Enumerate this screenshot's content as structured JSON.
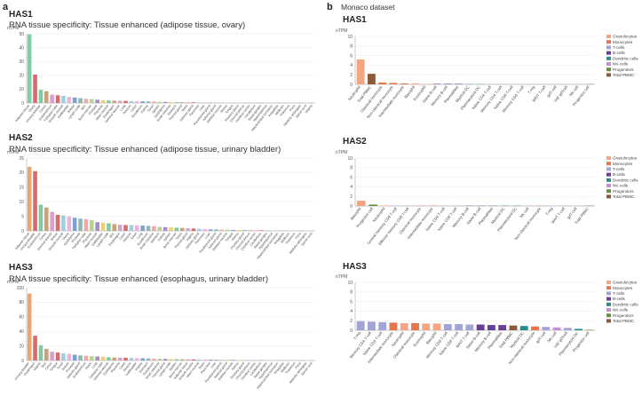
{
  "panels": {
    "a": "a",
    "b": "b"
  },
  "monaco_title": "Monaco dataset",
  "unit": "nTPM",
  "legend": [
    {
      "label": "Granulocytes",
      "color": "#f4a582"
    },
    {
      "label": "Monocytes",
      "color": "#e6764e"
    },
    {
      "label": "T-cells",
      "color": "#a3a4d6"
    },
    {
      "label": "B-cells",
      "color": "#6a3d9a"
    },
    {
      "label": "Dendritic cells",
      "color": "#2c8c8c"
    },
    {
      "label": "NK-cells",
      "color": "#c98fd6"
    },
    {
      "label": "Progenitors",
      "color": "#6b8e3a"
    },
    {
      "label": "Total PBMC",
      "color": "#8a5a3b"
    }
  ],
  "chart_data": [
    {
      "type": "bar",
      "gene": "HAS1",
      "title": "RNA tissue specificity: Tissue enhanced (adipose tissue, ovary)",
      "ylabel": "nTPM",
      "ylim": [
        0,
        50
      ],
      "yticks": [
        0,
        10,
        20,
        30,
        40,
        50
      ],
      "categories": [
        "Adipose tissue",
        "Ovary",
        "Urinary bladder",
        "Cervix",
        "Endometrium",
        "Fallopian tube",
        "Smooth muscle",
        "Gallbladder",
        "Breast",
        "Lymph node",
        "Skin",
        "Bone marrow",
        "Prostate",
        "Placenta",
        "Heart muscle",
        "Esophagus",
        "Seminal vesicle",
        "Lung",
        "Rectum",
        "Colon",
        "Duodenum",
        "Kidney",
        "Tonsil",
        "Spleen",
        "Epididymis",
        "Small intestine",
        "Stomach",
        "Thyroid gland",
        "Testis",
        "Salivary gland",
        "Pancreas",
        "Liver",
        "Parathyroid gland",
        "Adrenal gland",
        "Skeletal muscle",
        "Retina",
        "Tongue",
        "Pituitary gland",
        "Choroid plexus",
        "Cerebral cortex",
        "Cerebellum",
        "Basal ganglia",
        "Hypothalamus",
        "Hippocampal formation",
        "Amygdala",
        "Midbrain",
        "Thalamus",
        "Pons",
        "Medulla oblongata",
        "Spinal cord",
        "Vagina"
      ],
      "values": [
        49.5,
        20.5,
        9.5,
        8.5,
        6,
        5.6,
        5.2,
        4.4,
        4,
        3.5,
        3,
        2.8,
        2.4,
        2,
        1.8,
        1.7,
        1.6,
        1.5,
        1.4,
        1.3,
        1.2,
        1.1,
        1,
        0.9,
        0.8,
        0.7,
        0.6,
        0.6,
        0.5,
        0.5,
        0.4,
        0.4,
        0.3,
        0.3,
        0.3,
        0.2,
        0.2,
        0.2,
        0.2,
        0.1,
        0.1,
        0.1,
        0.1,
        0.1,
        0.1,
        0.1,
        0.1,
        0.1,
        0.1,
        0.1,
        0.1
      ]
    },
    {
      "type": "bar",
      "gene": "HAS2",
      "title": "RNA tissue specificity: Tissue enhanced (adipose tissue, urinary bladder)",
      "ylabel": "nTPM",
      "ylim": [
        0,
        25
      ],
      "yticks": [
        0,
        5,
        10,
        15,
        20,
        25
      ],
      "categories": [
        "Adipose tissue",
        "Urinary bladder",
        "Endometrium",
        "Cervix",
        "Seminal vesicle",
        "Breast",
        "Smooth muscle",
        "Ovary",
        "Epididymis",
        "Prostate",
        "Fallopian tube",
        "Placenta",
        "Heart muscle",
        "Gallbladder",
        "Lymph node",
        "Skin",
        "Esophagus",
        "Colon",
        "Rectum",
        "Tonsil",
        "Lung",
        "Duodenum",
        "Small intestine",
        "Stomach",
        "Kidney",
        "Spleen",
        "Bone marrow",
        "Testis",
        "Thyroid gland",
        "Vagina",
        "Salivary gland",
        "Pancreas",
        "Liver",
        "Parathyroid gland",
        "Adrenal gland",
        "Skeletal muscle",
        "Tongue",
        "Retina",
        "Pituitary gland",
        "Choroid plexus",
        "Cerebral cortex",
        "Cerebellum",
        "Basal ganglia",
        "Hypothalamus",
        "Hippocampal formation",
        "Amygdala",
        "Midbrain",
        "Thalamus",
        "Pons",
        "Medulla oblongata",
        "Spinal cord"
      ],
      "values": [
        22,
        20.5,
        9,
        8,
        6.5,
        5.5,
        5.3,
        5,
        4.5,
        4.2,
        4,
        3.7,
        3,
        2.8,
        2.6,
        2.3,
        2.1,
        2,
        2,
        1.9,
        1.8,
        1.7,
        1.6,
        1.4,
        1.3,
        1.2,
        1.1,
        1,
        0.9,
        0.8,
        0.7,
        0.6,
        0.5,
        0.5,
        0.4,
        0.4,
        0.3,
        0.3,
        0.3,
        0.2,
        0.2,
        0.2,
        0.2,
        0.1,
        0.1,
        0.1,
        0.1,
        0.1,
        0.1,
        0.1,
        0.1
      ]
    },
    {
      "type": "bar",
      "gene": "HAS3",
      "title": "RNA tissue specificity: Tissue enhanced (esophagus, urinary bladder)",
      "ylabel": "nTPM",
      "ylim": [
        0,
        100
      ],
      "yticks": [
        0,
        20,
        40,
        60,
        80,
        100
      ],
      "categories": [
        "Urinary bladder",
        "Esophagus",
        "Vagina",
        "Skin",
        "Cervix",
        "Tongue",
        "Tonsil",
        "Breast",
        "Prostate",
        "Salivary gland",
        "Endometrium",
        "Ovary",
        "Lung",
        "Fallopian tube",
        "Seminal vesicle",
        "Epididymis",
        "Placenta",
        "Colon",
        "Rectum",
        "Gallbladder",
        "Kidney",
        "Stomach",
        "Duodenum",
        "Small intestine",
        "Thyroid gland",
        "Lymph node",
        "Spleen",
        "Bone marrow",
        "Adipose tissue",
        "Smooth muscle",
        "Heart muscle",
        "Testis",
        "Pancreas",
        "Liver",
        "Parathyroid gland",
        "Adrenal gland",
        "Skeletal muscle",
        "Retina",
        "Pituitary gland",
        "Choroid plexus",
        "Cerebral cortex",
        "Cerebellum",
        "Basal ganglia",
        "Hypothalamus",
        "Hippocampal formation",
        "Amygdala",
        "Midbrain",
        "Thalamus",
        "Pons",
        "Medulla oblongata",
        "Spinal cord"
      ],
      "values": [
        92,
        34,
        21,
        16,
        12,
        11,
        10,
        9,
        8,
        7,
        6.5,
        6,
        5.5,
        5,
        4.5,
        4,
        4,
        3.8,
        3.5,
        3.2,
        3,
        2.8,
        2.6,
        2.4,
        2.2,
        2,
        1.8,
        1.7,
        1.6,
        1.5,
        1.4,
        1.3,
        1.2,
        1.1,
        1,
        0.9,
        0.8,
        0.7,
        0.6,
        0.5,
        0.5,
        0.4,
        0.4,
        0.3,
        0.3,
        0.3,
        0.2,
        0.2,
        0.2,
        0.1,
        0.1
      ]
    },
    {
      "type": "bar",
      "gene": "HAS1",
      "ylabel": "nTPM",
      "ylim": [
        0,
        10
      ],
      "yticks": [
        0,
        2,
        4,
        6,
        8,
        10
      ],
      "categories": [
        "Neutrophil",
        "Total PBMC",
        "Classical monocyte",
        "Non-classical monocyte",
        "Intermediate monocyte",
        "Basophil",
        "Eosinophil",
        "Naive B-cell",
        "Memory B-cell",
        "Plasmablast",
        "Myeloid DC",
        "Plasmacytoid DC",
        "Naive CD4 T-cell",
        "Memory CD4 T-cell",
        "Naive CD8 T-cell",
        "Memory CD8 T-cell",
        "T-reg",
        "MAIT T-cell",
        "gdT-cell",
        "Vd2 gdTcell",
        "NK-cell",
        "Progenitor cell"
      ],
      "groups": [
        0,
        7,
        1,
        1,
        1,
        0,
        0,
        3,
        3,
        3,
        4,
        4,
        2,
        2,
        2,
        2,
        2,
        2,
        2,
        2,
        5,
        6
      ],
      "values": [
        5.2,
        2.2,
        0.4,
        0.3,
        0.2,
        0.2,
        0.1,
        0.1,
        0.1,
        0.1,
        0.05,
        0.05,
        0.05,
        0.05,
        0.05,
        0.05,
        0.05,
        0.05,
        0.05,
        0.05,
        0.05,
        0.05
      ]
    },
    {
      "type": "bar",
      "gene": "HAS2",
      "ylabel": "nTPM",
      "ylim": [
        0,
        10
      ],
      "yticks": [
        0,
        2,
        4,
        6,
        8,
        10
      ],
      "categories": [
        "Basophil",
        "Progenitor cell",
        "Neutrophil",
        "Central memory CD8 T-cell",
        "Effector memory CD8 T-cell",
        "Classical monocyte",
        "Intermediate monocyte",
        "Naive CD4 T-cell",
        "Naive CD8 T-cell",
        "Memory B-cell",
        "Naive B-cell",
        "Plasmablast",
        "Myeloid DC",
        "Plasmacytoid DC",
        "NK-cell",
        "Non-classical monocyte",
        "T-reg",
        "MAIT T-cell",
        "gdT-cell",
        "Total PBMC"
      ],
      "groups": [
        0,
        6,
        0,
        2,
        2,
        1,
        1,
        2,
        2,
        3,
        3,
        3,
        4,
        4,
        5,
        1,
        2,
        2,
        2,
        7
      ],
      "values": [
        1.1,
        0.3,
        0.1,
        0.05,
        0.05,
        0.05,
        0.05,
        0.05,
        0.05,
        0.05,
        0.05,
        0.05,
        0.05,
        0.05,
        0.05,
        0.05,
        0.05,
        0.05,
        0.05,
        0.05
      ]
    },
    {
      "type": "bar",
      "gene": "HAS3",
      "ylabel": "nTPM",
      "ylim": [
        0,
        10
      ],
      "yticks": [
        0,
        2,
        4,
        6,
        8,
        10
      ],
      "categories": [
        "T-reg",
        "Memory CD4 T-cell",
        "Naive CD4 T-cell",
        "Intermediate monocyte",
        "Neutrophil",
        "Classical monocyte",
        "Eosinophil",
        "Basophil",
        "Memory CD8 T-cell",
        "Naive CD8 T-cell",
        "MAIT T-cell",
        "Naive B-cell",
        "Memory B-cell",
        "Plasmablast",
        "Total PBMC",
        "Myeloid DC",
        "Non-classical monocyte",
        "gdT-cell",
        "NK-cell",
        "Vd2 gdTcell",
        "Plasmacytoid DC",
        "Progenitor cell"
      ],
      "groups": [
        2,
        2,
        2,
        1,
        0,
        1,
        0,
        0,
        2,
        2,
        2,
        3,
        3,
        3,
        7,
        4,
        1,
        2,
        5,
        2,
        4,
        6
      ],
      "values": [
        1.9,
        1.8,
        1.7,
        1.6,
        1.5,
        1.5,
        1.4,
        1.4,
        1.3,
        1.3,
        1.2,
        1.2,
        1.1,
        1.1,
        1.0,
        0.9,
        0.8,
        0.7,
        0.6,
        0.5,
        0.3,
        0.1
      ]
    }
  ]
}
